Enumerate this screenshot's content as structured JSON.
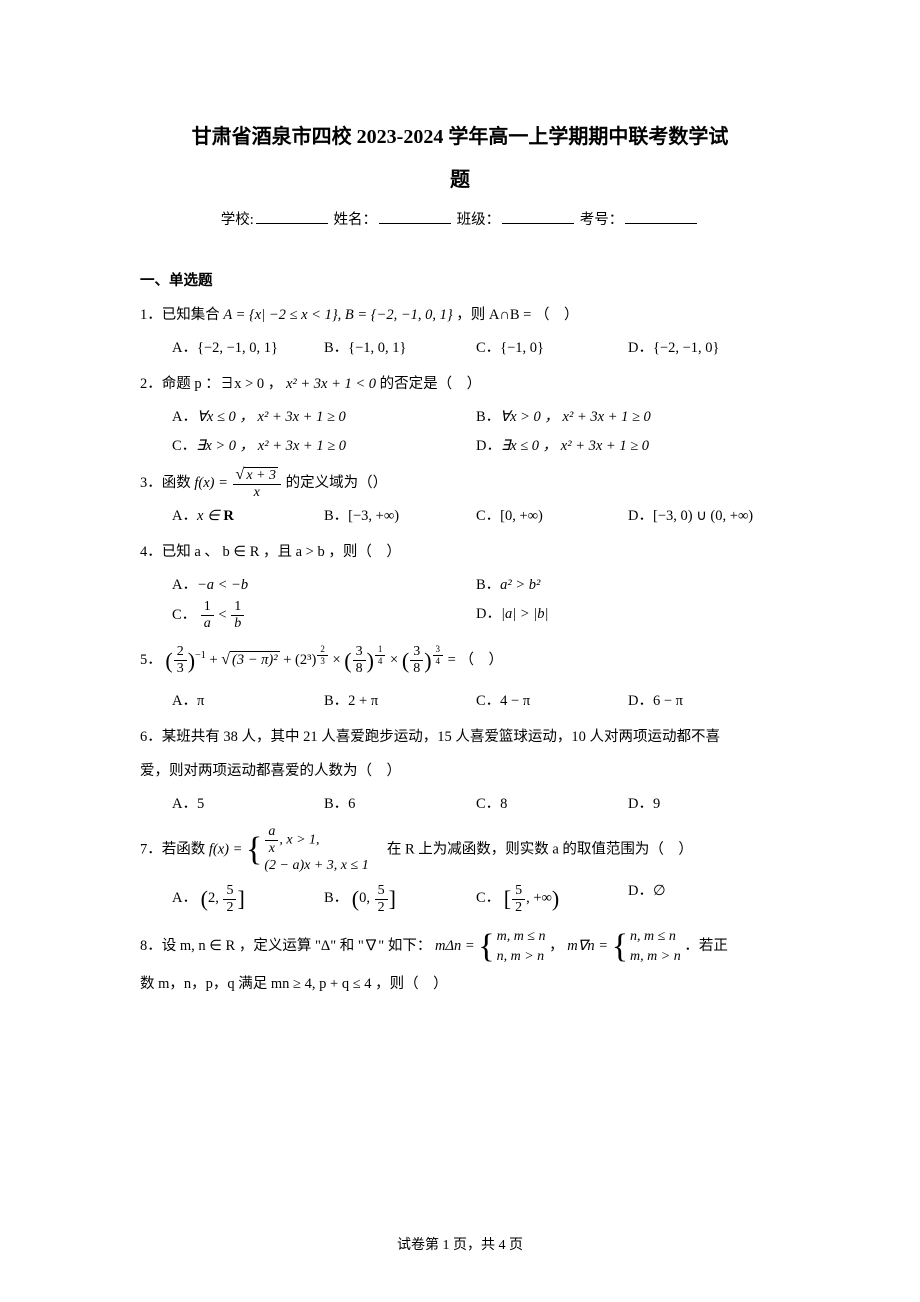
{
  "style": {
    "page_bg": "#ffffff",
    "text_color": "#000000",
    "title_fontsize": 20,
    "body_fontsize": 14.5,
    "footer_fontsize": 14,
    "font_family_cjk": "SimSun",
    "font_family_math": "Times New Roman"
  },
  "header": {
    "title_line1": "甘肃省酒泉市四校 2023-2024 学年高一上学期期中联考数学试",
    "title_line2": "题",
    "info": {
      "school_label": "学校:",
      "name_label": "姓名：",
      "class_label": "班级：",
      "exam_no_label": "考号："
    }
  },
  "section1": {
    "heading": "一、单选题"
  },
  "q1": {
    "stem_pre": "1．已知集合 ",
    "expr": "A = {x| −2 ≤ x < 1}, B = {−2, −1, 0, 1}",
    "stem_post": " ，则 A∩B = （ ）",
    "A": "{−2, −1, 0, 1}",
    "B": "{−1, 0, 1}",
    "C": "{−1, 0}",
    "D": "{−2, −1, 0}",
    "labA": "A．",
    "labB": "B．",
    "labC": "C．",
    "labD": "D．",
    "opt_layout": "four"
  },
  "q2": {
    "stem_pre": "2．命题 p ：∃x > 0 ， ",
    "expr": "x² + 3x + 1 < 0",
    "stem_post": " 的否定是（ ）",
    "A": "∀x ≤ 0 ， x² + 3x + 1 ≥ 0",
    "B": "∀x > 0 ， x² + 3x + 1 ≥ 0",
    "C": "∃x > 0 ， x² + 3x + 1 ≥ 0",
    "D": "∃x ≤ 0 ， x² + 3x + 1 ≥ 0",
    "labA": "A．",
    "labB": "B．",
    "labC": "C．",
    "labD": "D．",
    "opt_layout": "two"
  },
  "q3": {
    "stem_pre": "3．函数 ",
    "fx_lhs": "f(x) = ",
    "numerator_sqrt_arg": "x + 3",
    "denominator": "x",
    "stem_post": " 的定义域为（）",
    "A_pre": "x ∈ ",
    "A_set": "R",
    "B": "[−3, +∞)",
    "C": "[0, +∞)",
    "D": "[−3, 0) ∪ (0, +∞)",
    "labA": "A．",
    "labB": "B．",
    "labC": "C．",
    "labD": "D．",
    "opt_layout": "four"
  },
  "q4": {
    "stem": "4．已知 a 、 b ∈ R ，且 a > b ，则（ ）",
    "A": "−a < −b",
    "B": "a² > b²",
    "C_num1": "1",
    "C_den1": "a",
    "C_mid": " < ",
    "C_num2": "1",
    "C_den2": "b",
    "D": "|a| > |b|",
    "labA": "A．",
    "labB": "B．",
    "labC": "C．",
    "labD": "D．",
    "opt_layout": "two"
  },
  "q5": {
    "stem_num": "5．",
    "t1_num": "2",
    "t1_den": "3",
    "t1_exp": "−1",
    "plus1": " + ",
    "t2_inner": "(3 − π)²",
    "plus2": " + ",
    "t3_base": "2³",
    "t3_exp_num": "2",
    "t3_exp_den": "3",
    "times1": " × ",
    "t4_num": "3",
    "t4_den": "8",
    "t4_exp_num": "1",
    "t4_exp_den": "4",
    "times2": " × ",
    "t5_num": "3",
    "t5_den": "8",
    "t5_exp_num": "3",
    "t5_exp_den": "4",
    "eq": " = （ ）",
    "A": "π",
    "B": "2 + π",
    "C": "4 − π",
    "D": "6 − π",
    "labA": "A．",
    "labB": "B．",
    "labC": "C．",
    "labD": "D．",
    "opt_layout": "four"
  },
  "q6": {
    "stem1": "6．某班共有 38 人，其中 21 人喜爱跑步运动，15 人喜爱篮球运动，10 人对两项运动都不喜",
    "stem2": "爱，则对两项运动都喜爱的人数为（ ）",
    "A": "5",
    "B": "6",
    "C": "8",
    "D": "9",
    "labA": "A．",
    "labB": "B．",
    "labC": "C．",
    "labD": "D．",
    "opt_layout": "four"
  },
  "q7": {
    "stem_pre": "7．若函数 ",
    "fx_lhs": "f(x) = ",
    "row1_num": "a",
    "row1_den": "x",
    "row1_cond": ", x > 1,",
    "row2": "(2 − a)x + 3, x ≤ 1",
    "stem_post": " 在 R 上为减函数，则实数 a 的取值范围为（ ）",
    "A_l": "(",
    "A_n1": "2, ",
    "A_fr_num": "5",
    "A_fr_den": "2",
    "A_r": "]",
    "B_l": "(",
    "B_n1": "0, ",
    "B_fr_num": "5",
    "B_fr_den": "2",
    "B_r": "]",
    "C_l": "[",
    "C_fr_num": "5",
    "C_fr_den": "2",
    "C_rest": ", +∞",
    "C_r": ")",
    "D": "∅",
    "labA": "A．",
    "labB": "B．",
    "labC": "C．",
    "labD": "D．",
    "opt_layout": "four"
  },
  "q8": {
    "stem_pre": "8．设 m, n ∈ R ，定义运算 \"Δ\" 和 \"∇\" 如下：",
    "delta_lhs": "mΔn = ",
    "delta_r1": "m, m ≤ n",
    "delta_r2": "n, m > n",
    "sep": " ， ",
    "nabla_lhs": "m∇n = ",
    "nabla_r1": "n, m ≤ n",
    "nabla_r2": "m, m > n",
    "stem_mid": " ．若正",
    "stem2": "数 m，n，p，q 满足 mn ≥ 4, p + q ≤ 4 ，则（ ）"
  },
  "footer": {
    "text": "试卷第 1 页，共 4 页"
  }
}
